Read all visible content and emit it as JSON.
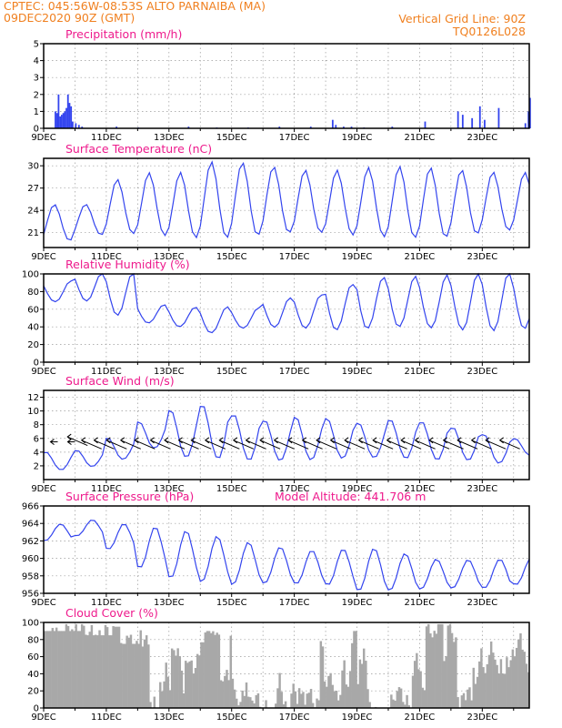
{
  "header": {
    "line1": "CPTEC:   045:56W-08:53S   ALTO PARNAIBA (MA)",
    "line2": "09DEC2020 90Z (GMT)",
    "grid_note": "Vertical Grid Line: 90Z",
    "model_id": "TQ0126L028",
    "orange": "#f08020",
    "magenta": "#ee1a8c",
    "series_color": "#3344ee",
    "cloud_color": "#a8a8a8"
  },
  "x_axis": {
    "tick_labels": [
      "9DEC",
      "11DEC",
      "13DEC",
      "15DEC",
      "17DEC",
      "19DEC",
      "21DEC",
      "23DEC"
    ],
    "range_days": [
      0,
      15.5
    ]
  },
  "chart_data": [
    {
      "type": "bar",
      "title": "Precipitation (mm/h)",
      "ylim": [
        0,
        5
      ],
      "yticks": [
        0,
        1,
        2,
        3,
        4,
        5
      ],
      "x": [
        0.35,
        0.4,
        0.45,
        0.5,
        0.55,
        0.6,
        0.65,
        0.7,
        0.75,
        0.8,
        0.85,
        0.9,
        1.0,
        1.1,
        1.2,
        2.3,
        3.0,
        4.6,
        5.5,
        6.5,
        7.5,
        8.5,
        9.2,
        9.3,
        9.55,
        9.8,
        10.2,
        11.1,
        12.15,
        13.2,
        13.35,
        13.65,
        13.9,
        14.05,
        14.5,
        15.35,
        15.45,
        15.5
      ],
      "values": [
        1.0,
        0.9,
        2.0,
        0.7,
        0.8,
        0.9,
        1.0,
        1.2,
        2.0,
        1.5,
        1.3,
        0.4,
        0.3,
        0.2,
        0.1,
        0.1,
        0.05,
        0.1,
        0.05,
        0.05,
        0.1,
        0.1,
        0.5,
        0.2,
        0.1,
        0.1,
        0.05,
        0.1,
        0.4,
        1.0,
        0.8,
        0.6,
        1.3,
        0.5,
        1.2,
        0.3,
        1.0,
        1.8
      ]
    },
    {
      "type": "line",
      "title": "Surface Temperature (nC)",
      "ylim": [
        19,
        31
      ],
      "yticks": [
        21,
        24,
        27,
        30
      ],
      "x_start": 0,
      "x_step": 0.125,
      "y_min": 20.0,
      "y_max": 30.0,
      "min_phase": 0.85,
      "mins": [
        20.0,
        20.6,
        20.6,
        20.6,
        20.6,
        20.7,
        20.8,
        20.8,
        20.7,
        20.6,
        20.7,
        20.7,
        20.6,
        20.7,
        21.0,
        21.2
      ],
      "maxs": [
        24.7,
        24.9,
        28.5,
        29.3,
        29.0,
        30.2,
        30.2,
        30.0,
        29.8,
        29.7,
        29.7,
        29.6,
        29.5,
        29.5,
        29.5,
        29.4
      ],
      "values": []
    },
    {
      "type": "line",
      "title": "Relative Humidity (%)",
      "ylim": [
        0,
        100
      ],
      "yticks": [
        0,
        20,
        40,
        60,
        80,
        100
      ],
      "x_start": 0,
      "x_step": 0.125,
      "y_min": 0,
      "y_max": 100,
      "min_phase": 0.35,
      "mins": [
        68,
        70,
        55,
        45,
        40,
        32,
        38,
        40,
        40,
        38,
        38,
        38,
        37,
        37,
        38,
        40
      ],
      "maxs": [
        92,
        100,
        100,
        65,
        63,
        64,
        62,
        72,
        75,
        88,
        98,
        100,
        100,
        100,
        100,
        96
      ],
      "values": []
    },
    {
      "type": "line",
      "title": "Surface Wind (m/s)",
      "ylim": [
        0,
        13
      ],
      "yticks": [
        2,
        4,
        6,
        8,
        10,
        12
      ],
      "x_start": 0,
      "x_step": 0.125,
      "y_min": 0,
      "y_max": 13,
      "min_phase": 0.55,
      "mins": [
        1.5,
        2.0,
        3.0,
        4.5,
        3.0,
        3.0,
        3.0,
        3.0,
        3.0,
        3.0,
        3.0,
        3.0,
        3.0,
        3.0,
        2.5,
        3.5
      ],
      "maxs": [
        4.0,
        4.2,
        6.0,
        8.5,
        10.5,
        11.2,
        9.5,
        8.5,
        9.0,
        9.0,
        8.5,
        9.0,
        8.5,
        7.5,
        6.5,
        6.0
      ],
      "values": []
    },
    {
      "type": "line",
      "title": "Surface Pressure (hPa)",
      "annotation": "Model Altitude: 441.706  m",
      "ylim": [
        956,
        966
      ],
      "yticks": [
        956,
        958,
        960,
        962,
        964,
        966
      ],
      "x_start": 0,
      "x_step": 0.125,
      "y_min": 956,
      "y_max": 966,
      "min_phase": 0.05,
      "mins": [
        962.0,
        962.5,
        961.0,
        959.0,
        958.0,
        957.5,
        957.0,
        957.0,
        957.0,
        957.0,
        956.5,
        956.5,
        956.5,
        956.5,
        956.5,
        957.0
      ],
      "maxs": [
        964.0,
        964.5,
        964.0,
        963.5,
        963.0,
        962.5,
        962.0,
        961.5,
        961.0,
        961.0,
        961.0,
        960.5,
        960.0,
        960.0,
        960.0,
        960.0
      ],
      "values": []
    },
    {
      "type": "bar",
      "title": "Cloud Cover (%)",
      "ylim": [
        0,
        100
      ],
      "yticks": [
        0,
        20,
        40,
        60,
        80,
        100
      ],
      "x_start": 0,
      "x_step": 0.0625,
      "segments": [
        [
          0,
          1.2,
          90,
          98
        ],
        [
          1.2,
          2.2,
          85,
          97
        ],
        [
          2.2,
          3.1,
          75,
          95
        ],
        [
          3.1,
          3.9,
          0,
          85
        ],
        [
          3.9,
          4.6,
          0,
          92
        ],
        [
          4.6,
          5.5,
          0,
          90
        ],
        [
          5.5,
          6.7,
          0,
          88
        ],
        [
          6.7,
          7.5,
          0,
          95
        ],
        [
          7.5,
          8.5,
          0,
          90
        ],
        [
          8.5,
          9.5,
          0,
          88
        ],
        [
          9.5,
          10.5,
          0,
          90
        ],
        [
          10.5,
          11.8,
          0,
          95
        ],
        [
          11.8,
          13.0,
          20,
          98
        ],
        [
          13.0,
          14.0,
          0,
          95
        ],
        [
          14.0,
          15.5,
          40,
          100
        ]
      ],
      "values": []
    }
  ],
  "wind_arrows_days": [
    0.45,
    1.0,
    1.4,
    1.85,
    2.25,
    2.65,
    3.1,
    3.55,
    4.05,
    4.5,
    4.95,
    5.35,
    5.8,
    6.25,
    6.7,
    7.1,
    7.55,
    8.0,
    8.45,
    8.9,
    9.35,
    9.8,
    10.25,
    10.7,
    11.15,
    11.6,
    12.05,
    12.5,
    12.95,
    13.4,
    13.85,
    14.3,
    14.75,
    15.2
  ]
}
